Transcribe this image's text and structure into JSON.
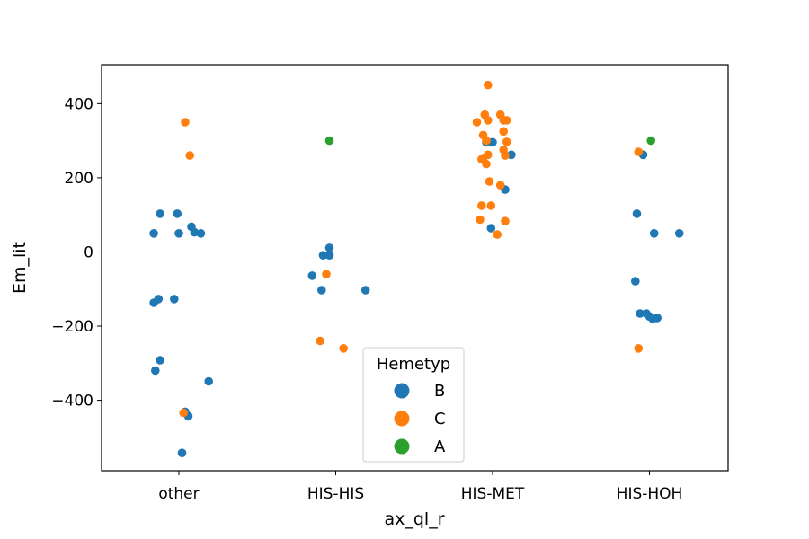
{
  "chart_data": {
    "type": "scatter",
    "xlabel": "ax_ql_r",
    "ylabel": "Em_lit",
    "categories": [
      "other",
      "HIS-HIS",
      "HIS-MET",
      "HIS-HOH"
    ],
    "ylim": [
      -590,
      505
    ],
    "yticks": [
      -400,
      -200,
      0,
      200,
      400
    ],
    "ytick_labels": [
      "−400",
      "−200",
      "0",
      "200",
      "400"
    ],
    "grid": false,
    "legend": {
      "title": "Hemetyp",
      "placement": "bottom-center",
      "entries": [
        {
          "label": "B",
          "color": "#1f77b4"
        },
        {
          "label": "C",
          "color": "#ff7f0e"
        },
        {
          "label": "A",
          "color": "#2ca02c"
        }
      ]
    },
    "series": [
      {
        "name": "B",
        "color": "#1f77b4",
        "points": [
          {
            "x": "other",
            "jitter": -0.16,
            "y": 50
          },
          {
            "x": "other",
            "jitter": -0.12,
            "y": 103
          },
          {
            "x": "other",
            "jitter": -0.01,
            "y": 103
          },
          {
            "x": "other",
            "jitter": 0.08,
            "y": 68
          },
          {
            "x": "other",
            "jitter": 0.14,
            "y": 50
          },
          {
            "x": "other",
            "jitter": 0.0,
            "y": 50
          },
          {
            "x": "other",
            "jitter": 0.1,
            "y": 53
          },
          {
            "x": "other",
            "jitter": -0.16,
            "y": -137
          },
          {
            "x": "other",
            "jitter": -0.13,
            "y": -127
          },
          {
            "x": "other",
            "jitter": -0.03,
            "y": -127
          },
          {
            "x": "other",
            "jitter": -0.12,
            "y": -292
          },
          {
            "x": "other",
            "jitter": -0.15,
            "y": -320
          },
          {
            "x": "other",
            "jitter": 0.19,
            "y": -349
          },
          {
            "x": "other",
            "jitter": 0.06,
            "y": -443
          },
          {
            "x": "other",
            "jitter": 0.04,
            "y": -431
          },
          {
            "x": "other",
            "jitter": 0.02,
            "y": -542
          },
          {
            "x": "HIS-HIS",
            "jitter": -0.04,
            "y": 11
          },
          {
            "x": "HIS-HIS",
            "jitter": -0.08,
            "y": -9
          },
          {
            "x": "HIS-HIS",
            "jitter": -0.04,
            "y": -9
          },
          {
            "x": "HIS-HIS",
            "jitter": -0.15,
            "y": -64
          },
          {
            "x": "HIS-HIS",
            "jitter": -0.09,
            "y": -103
          },
          {
            "x": "HIS-HIS",
            "jitter": 0.19,
            "y": -103
          },
          {
            "x": "HIS-MET",
            "jitter": -0.04,
            "y": 296
          },
          {
            "x": "HIS-MET",
            "jitter": 0.0,
            "y": 296
          },
          {
            "x": "HIS-MET",
            "jitter": 0.12,
            "y": 262
          },
          {
            "x": "HIS-MET",
            "jitter": 0.08,
            "y": 168
          },
          {
            "x": "HIS-MET",
            "jitter": -0.01,
            "y": 64
          },
          {
            "x": "HIS-HOH",
            "jitter": -0.08,
            "y": 103
          },
          {
            "x": "HIS-HOH",
            "jitter": -0.04,
            "y": 262
          },
          {
            "x": "HIS-HOH",
            "jitter": 0.03,
            "y": 50
          },
          {
            "x": "HIS-HOH",
            "jitter": 0.19,
            "y": 50
          },
          {
            "x": "HIS-HOH",
            "jitter": -0.09,
            "y": -79
          },
          {
            "x": "HIS-HOH",
            "jitter": -0.06,
            "y": -166
          },
          {
            "x": "HIS-HOH",
            "jitter": -0.02,
            "y": -166
          },
          {
            "x": "HIS-HOH",
            "jitter": 0.0,
            "y": -174
          },
          {
            "x": "HIS-HOH",
            "jitter": 0.02,
            "y": -180
          },
          {
            "x": "HIS-HOH",
            "jitter": 0.05,
            "y": -178
          }
        ]
      },
      {
        "name": "C",
        "color": "#ff7f0e",
        "points": [
          {
            "x": "other",
            "jitter": 0.04,
            "y": 350
          },
          {
            "x": "other",
            "jitter": 0.07,
            "y": 260
          },
          {
            "x": "other",
            "jitter": 0.03,
            "y": -434
          },
          {
            "x": "HIS-HIS",
            "jitter": -0.06,
            "y": -60
          },
          {
            "x": "HIS-HIS",
            "jitter": -0.1,
            "y": -240
          },
          {
            "x": "HIS-HIS",
            "jitter": 0.05,
            "y": -260
          },
          {
            "x": "HIS-MET",
            "jitter": -0.03,
            "y": 450
          },
          {
            "x": "HIS-MET",
            "jitter": -0.05,
            "y": 370
          },
          {
            "x": "HIS-MET",
            "jitter": 0.05,
            "y": 370
          },
          {
            "x": "HIS-MET",
            "jitter": -0.1,
            "y": 350
          },
          {
            "x": "HIS-MET",
            "jitter": -0.03,
            "y": 355
          },
          {
            "x": "HIS-MET",
            "jitter": 0.09,
            "y": 355
          },
          {
            "x": "HIS-MET",
            "jitter": 0.07,
            "y": 355
          },
          {
            "x": "HIS-MET",
            "jitter": 0.07,
            "y": 325
          },
          {
            "x": "HIS-MET",
            "jitter": -0.06,
            "y": 315
          },
          {
            "x": "HIS-MET",
            "jitter": -0.04,
            "y": 300
          },
          {
            "x": "HIS-MET",
            "jitter": 0.09,
            "y": 297
          },
          {
            "x": "HIS-MET",
            "jitter": 0.07,
            "y": 275
          },
          {
            "x": "HIS-MET",
            "jitter": -0.03,
            "y": 262
          },
          {
            "x": "HIS-MET",
            "jitter": -0.06,
            "y": 253
          },
          {
            "x": "HIS-MET",
            "jitter": -0.07,
            "y": 250
          },
          {
            "x": "HIS-MET",
            "jitter": 0.08,
            "y": 260
          },
          {
            "x": "HIS-MET",
            "jitter": -0.04,
            "y": 237
          },
          {
            "x": "HIS-MET",
            "jitter": -0.02,
            "y": 190
          },
          {
            "x": "HIS-MET",
            "jitter": 0.05,
            "y": 180
          },
          {
            "x": "HIS-MET",
            "jitter": -0.07,
            "y": 125
          },
          {
            "x": "HIS-MET",
            "jitter": -0.01,
            "y": 125
          },
          {
            "x": "HIS-MET",
            "jitter": -0.08,
            "y": 87
          },
          {
            "x": "HIS-MET",
            "jitter": 0.08,
            "y": 83
          },
          {
            "x": "HIS-MET",
            "jitter": 0.03,
            "y": 47
          },
          {
            "x": "HIS-HOH",
            "jitter": -0.07,
            "y": 270
          },
          {
            "x": "HIS-HOH",
            "jitter": -0.07,
            "y": -260
          }
        ]
      },
      {
        "name": "A",
        "color": "#2ca02c",
        "points": [
          {
            "x": "HIS-HIS",
            "jitter": -0.04,
            "y": 300
          },
          {
            "x": "HIS-HOH",
            "jitter": 0.01,
            "y": 300
          }
        ]
      }
    ]
  }
}
